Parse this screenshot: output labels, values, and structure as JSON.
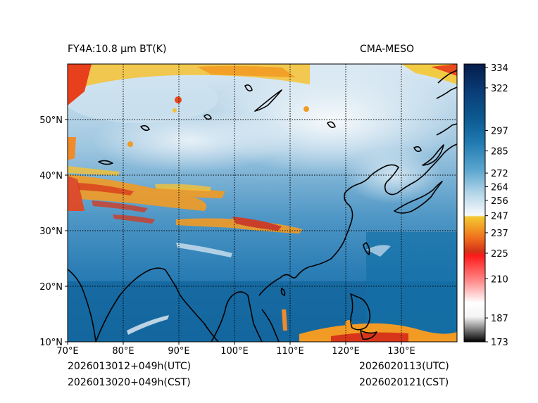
{
  "title": {
    "left": "FY4A:10.8 µm BT(K)",
    "right": "CMA-MESO"
  },
  "init_time": {
    "utc": "2026013012+049h(UTC)",
    "cst": "2026013020+049h(CST)"
  },
  "valid_time": {
    "utc": "2026020113(UTC)",
    "cst": "2026020121(CST)"
  },
  "map": {
    "lon_range": [
      70,
      140
    ],
    "lat_range": [
      10,
      60
    ],
    "lon_ticks": [
      "70°E",
      "80°E",
      "90°E",
      "100°E",
      "110°E",
      "120°E",
      "130°E"
    ],
    "lat_ticks": [
      "10°N",
      "20°N",
      "30°N",
      "40°N",
      "50°N"
    ]
  },
  "colorbar": {
    "tick_labels": [
      "334",
      "322",
      "297",
      "285",
      "272",
      "264",
      "256",
      "247",
      "237",
      "225",
      "210",
      "187",
      "173"
    ],
    "range": [
      173,
      336
    ]
  },
  "colors": {
    "ocean": "#1a6fa8",
    "land_mid": "#3b8cc0",
    "cloud_white": "#f2f6fa",
    "cold_orange": "#f08a2a",
    "cold_red": "#d8361a",
    "cold_yellow": "#f6c233",
    "coast": "#000000"
  }
}
